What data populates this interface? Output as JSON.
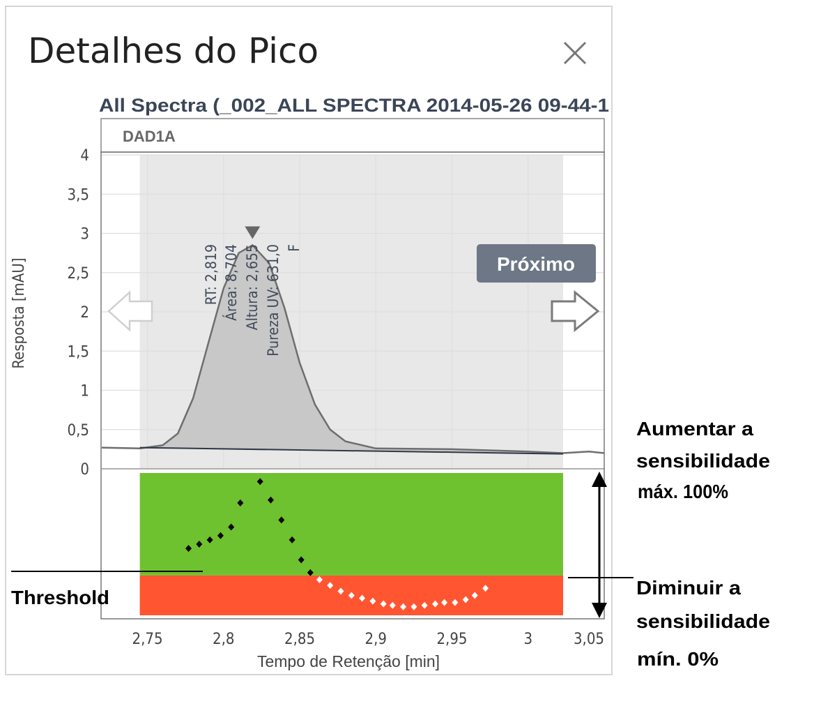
{
  "window": {
    "title": "Detalhes do Pico",
    "close_icon": "close-icon",
    "subtitle": "All Spectra (_002_ALL SPECTRA 2014-05-26 09-44-1",
    "signal_label": "DAD1A",
    "next_button_label": "Próximo",
    "prev_arrow_icon": "arrow-left-icon",
    "next_arrow_icon": "arrow-right-icon"
  },
  "annotations": {
    "threshold": "Threshold",
    "increase": [
      "Aumentar a",
      "sensibilidade",
      "máx. 100%"
    ],
    "decrease": [
      "Diminuir a",
      "sensibilidade",
      "mín. 0%"
    ],
    "double_arrow_icon": "vertical-double-arrow-icon"
  },
  "colors": {
    "purity_good": "#6fc22f",
    "purity_bad": "#ff5530",
    "peak_fill": "#c8c8c8",
    "peak_line": "#6e6e6e",
    "highlight": "#e8e8e8"
  },
  "chart_data": [
    {
      "type": "area",
      "xlabel": "Tempo de Retenção [min]",
      "ylabel": "Resposta [mAU]",
      "xlim": [
        2.72,
        3.05
      ],
      "ylim": [
        0,
        4
      ],
      "x_ticks": [
        2.75,
        2.8,
        2.85,
        2.9,
        2.95,
        3,
        3.05
      ],
      "x_tick_labels": [
        "2,75",
        "2,8",
        "2,85",
        "2,9",
        "2,95",
        "3",
        "3,05"
      ],
      "y_ticks": [
        0,
        0.5,
        1,
        1.5,
        2,
        2.5,
        3,
        3.5,
        4
      ],
      "y_tick_labels": [
        "0",
        "0,5",
        "1",
        "1,5",
        "2",
        "2,5",
        "3",
        "3,5",
        "4"
      ],
      "grid": true,
      "highlight_range": [
        2.745,
        3.023
      ],
      "peak_region": [
        2.745,
        3.023
      ],
      "series": [
        {
          "x": [
            2.72,
            2.745,
            2.76,
            2.77,
            2.78,
            2.79,
            2.8,
            2.81,
            2.819,
            2.83,
            2.84,
            2.85,
            2.86,
            2.87,
            2.88,
            2.9,
            2.95,
            3.0,
            3.023,
            3.04,
            3.05
          ],
          "values": [
            0.27,
            0.26,
            0.3,
            0.45,
            0.9,
            1.6,
            2.3,
            2.75,
            2.85,
            2.62,
            2.05,
            1.35,
            0.82,
            0.5,
            0.35,
            0.26,
            0.25,
            0.22,
            0.2,
            0.22,
            0.2
          ]
        }
      ],
      "baseline": {
        "x": [
          2.745,
          3.023
        ],
        "values": [
          0.27,
          0.19
        ]
      },
      "peak_marker": {
        "x": 2.819,
        "y": 3.0
      },
      "peak_labels": [
        "RT: 2,819",
        "Área: 8,704",
        "Altura: 2,655",
        "Pureza UV: 631,0",
        "F"
      ]
    },
    {
      "type": "scatter",
      "xlim": [
        2.72,
        3.05
      ],
      "ylim": [
        0,
        100
      ],
      "threshold": 28,
      "bands": [
        {
          "name": "good",
          "from": 28,
          "to": 100,
          "color": "#6fc22f"
        },
        {
          "name": "bad",
          "from": 0,
          "to": 28,
          "color": "#ff5530"
        }
      ],
      "series": [
        {
          "x": [
            2.777,
            2.784,
            2.791,
            2.798,
            2.805,
            2.811,
            2.824,
            2.831,
            2.838,
            2.845,
            2.851,
            2.857,
            2.863,
            2.87,
            2.877,
            2.884,
            2.891,
            2.898,
            2.905,
            2.911,
            2.918,
            2.925,
            2.932,
            2.939,
            2.945,
            2.952,
            2.959,
            2.965,
            2.972
          ],
          "values": [
            47,
            50,
            53,
            56,
            62,
            79,
            94,
            81,
            67,
            53,
            39,
            30,
            25,
            21,
            17,
            14,
            12,
            10,
            8,
            7,
            6,
            6,
            7,
            8,
            9,
            9,
            11,
            14,
            19
          ]
        }
      ]
    }
  ]
}
